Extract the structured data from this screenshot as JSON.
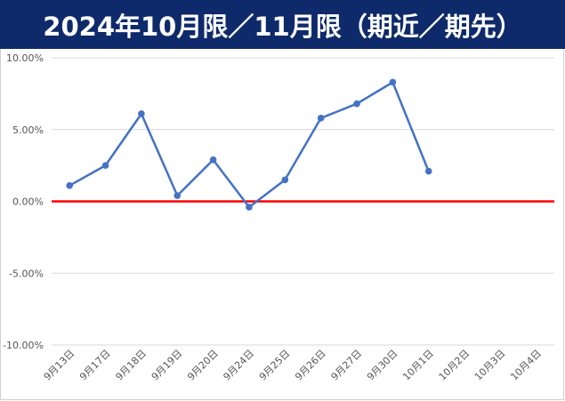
{
  "title": "2024年10月限／11月限（期近／期先）",
  "colors": {
    "title_background": "#0e2a6b",
    "title_text": "#ffffff",
    "series_line": "#4472c4",
    "zero_line": "#ff0000",
    "gridline": "#d9d9d9",
    "tick_text": "#555555"
  },
  "chart_data": {
    "type": "line",
    "title": "2024年10月限／11月限（期近／期先）",
    "xlabel": "",
    "ylabel": "",
    "categories": [
      "9月13日",
      "9月17日",
      "9月18日",
      "9月19日",
      "9月20日",
      "9月24日",
      "9月25日",
      "9月26日",
      "9月27日",
      "9月30日",
      "10月1日",
      "10月2日",
      "10月3日",
      "10月4日"
    ],
    "y_tick_labels": [
      "10.00%",
      "5.00%",
      "0.00%",
      "-5.00%",
      "-10.00%"
    ],
    "ylim": [
      -0.1,
      0.1
    ],
    "y_format": "percent_2dp",
    "grid": true,
    "legend": "none",
    "series": [
      {
        "values": [
          0.011,
          0.025,
          0.061,
          0.004,
          0.029,
          -0.004,
          0.015,
          0.058,
          0.068,
          0.083,
          0.021,
          null,
          null,
          null
        ]
      }
    ],
    "reference_line": {
      "value": 0.0
    }
  }
}
